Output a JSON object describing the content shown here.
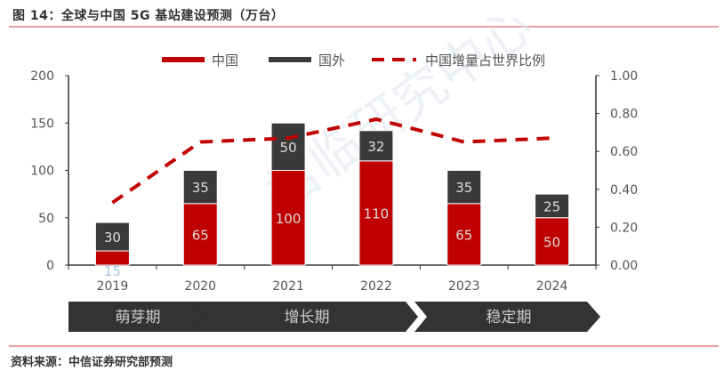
{
  "title": "图 14：全球与中国 5G 基站建设预测（万台）",
  "source": "资料来源：中信证券研究部预测",
  "watermark": "君临研究中心",
  "colors": {
    "china": "#c00000",
    "overseas": "#3a3a3a",
    "ratio_line": "#c00000",
    "phase_band": "#333333",
    "rule": "#e8a0a3"
  },
  "chart_data": {
    "type": "bar",
    "stacked": true,
    "categories": [
      "2019",
      "2020",
      "2021",
      "2022",
      "2023",
      "2024"
    ],
    "series": [
      {
        "name": "中国",
        "type": "bar",
        "axis": "left",
        "values": [
          15,
          65,
          100,
          110,
          65,
          50
        ]
      },
      {
        "name": "国外",
        "type": "bar",
        "axis": "left",
        "values": [
          30,
          35,
          50,
          32,
          35,
          25
        ]
      },
      {
        "name": "中国增量占世界比例",
        "type": "line",
        "style": "dashed",
        "axis": "right",
        "values": [
          0.33,
          0.65,
          0.67,
          0.77,
          0.65,
          0.67
        ]
      }
    ],
    "y_left": {
      "range": [
        0,
        200
      ],
      "ticks": [
        "0",
        "50",
        "100",
        "150",
        "200"
      ]
    },
    "y_right": {
      "range": [
        0,
        1
      ],
      "ticks": [
        "0.00",
        "0.20",
        "0.40",
        "0.60",
        "0.80",
        "1.00"
      ]
    },
    "grid": false,
    "legend": "top",
    "phases": [
      "萌芽期",
      "增长期",
      "稳定期"
    ]
  }
}
